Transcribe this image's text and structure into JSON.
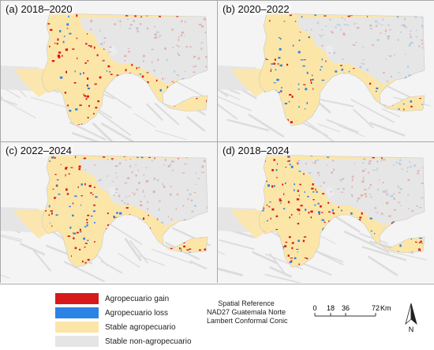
{
  "panels": [
    {
      "label": "(a) 2018–2020",
      "gain": 0.9,
      "loss": 0.15
    },
    {
      "label": "(b) 2020–2022",
      "gain": 0.35,
      "loss": 0.7
    },
    {
      "label": "(c) 2022–2024",
      "gain": 0.8,
      "loss": 0.3
    },
    {
      "label": "(d) 2018–2024",
      "gain": 0.85,
      "loss": 0.6
    }
  ],
  "legend": [
    {
      "label": "Agropecuario gain",
      "color": "#d7191c"
    },
    {
      "label": "Agropecuario loss",
      "color": "#2b83e6"
    },
    {
      "label": "Stable agropecuario",
      "color": "#fce6a7"
    },
    {
      "label": "Stable non-agropecuario",
      "color": "#e5e5e5"
    }
  ],
  "spatial_reference": {
    "title": "Spatial Reference",
    "datum": "NAD27 Guatemala Norte",
    "projection": "Lambert Conformal Conic"
  },
  "scale": {
    "ticks": [
      "0",
      "18",
      "36",
      "72"
    ],
    "unit": "Km"
  },
  "north_label": "N"
}
